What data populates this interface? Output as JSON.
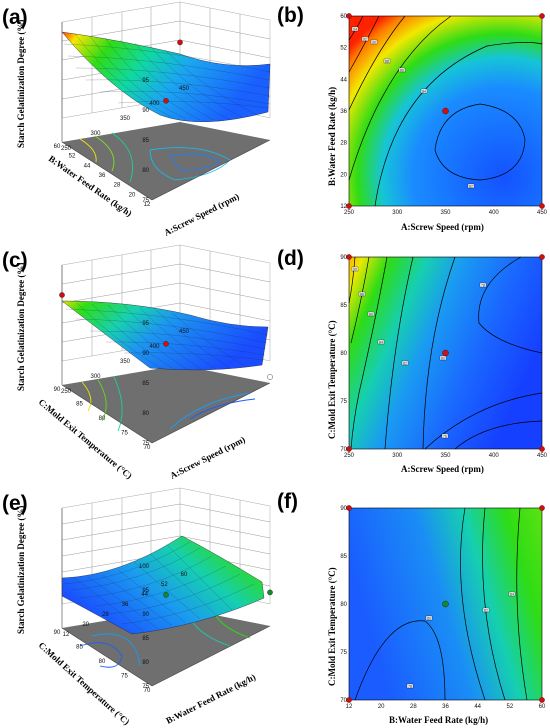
{
  "chart_data": [
    {
      "panel_label": "(a)",
      "type": "surface3d",
      "zlabel": "Starch Gelatinization Degree (%)",
      "xlabel": "A:Screw Speed (rpm)",
      "ylabel": "B:Water Feed Rate (kg/h)",
      "x_ticks": [
        "250",
        "300",
        "350",
        "400",
        "450"
      ],
      "y_ticks": [
        "12",
        "20",
        "28",
        "36",
        "44",
        "52",
        "60"
      ],
      "z_ticks": [
        "75",
        "80",
        "85",
        "90",
        "95"
      ],
      "x_range": [
        250,
        450
      ],
      "y_range": [
        12,
        60
      ],
      "z_range": [
        75,
        95
      ],
      "floor_contours": true,
      "points": [
        {
          "x": 350,
          "y": 36,
          "z": 81.7,
          "color": "#d01010"
        },
        {
          "x": 450,
          "y": 60,
          "z": 81.6,
          "color": "#d01010"
        }
      ],
      "colors": {
        "low": "#0a3cff",
        "high": "#ff2a00"
      }
    },
    {
      "panel_label": "(b)",
      "type": "contour",
      "xlabel": "A:Screw Speed (rpm)",
      "ylabel": "B:Water Feed Rate (kg/h)",
      "x_ticks": [
        "250",
        "300",
        "350",
        "400",
        "450"
      ],
      "y_ticks": [
        "12",
        "20",
        "28",
        "36",
        "44",
        "52",
        "60"
      ],
      "x_range": [
        250,
        450
      ],
      "y_range": [
        12,
        60
      ],
      "contour_labels": [
        "94",
        "92",
        "90",
        "88",
        "86",
        "84",
        "82"
      ],
      "center_point": {
        "x": 350,
        "y": 36,
        "color": "#d01010"
      },
      "corner_points": [
        {
          "x": 250,
          "y": 12
        },
        {
          "x": 450,
          "y": 12
        },
        {
          "x": 450,
          "y": 60
        },
        {
          "x": 250,
          "y": 60
        }
      ]
    },
    {
      "panel_label": "(c)",
      "type": "surface3d",
      "zlabel": "Starch Gelatinization Degree (%)",
      "xlabel": "A:Screw Speed (rpm)",
      "ylabel": "C:Mold Exit Temperature (°C)",
      "x_ticks": [
        "250",
        "300",
        "350",
        "400",
        "450"
      ],
      "y_ticks": [
        "70",
        "75",
        "80",
        "85",
        "90"
      ],
      "z_ticks": [
        "75",
        "80",
        "85",
        "90",
        "95"
      ],
      "x_range": [
        250,
        450
      ],
      "y_range": [
        70,
        90
      ],
      "z_range": [
        75,
        95
      ],
      "floor_contours": true,
      "points": [
        {
          "x": 350,
          "y": 80,
          "z": 81.7,
          "color": "#d01010"
        },
        {
          "x": 250,
          "y": 90,
          "z": 90,
          "color": "#d01010"
        },
        {
          "x": 450,
          "y": 70,
          "z": 76,
          "color": "#ffffff"
        }
      ],
      "colors": {
        "low": "#0a3cff",
        "high": "#ff2a00"
      }
    },
    {
      "panel_label": "(d)",
      "type": "contour",
      "xlabel": "A:Screw Speed (rpm)",
      "ylabel": "C:Mold Exit Temperature (°C)",
      "x_ticks": [
        "250",
        "300",
        "350",
        "400",
        "450"
      ],
      "y_ticks": [
        "70",
        "75",
        "80",
        "85",
        "90"
      ],
      "x_range": [
        250,
        450
      ],
      "y_range": [
        70,
        90
      ],
      "contour_labels": [
        "90",
        "88",
        "86",
        "84",
        "82",
        "80",
        "78",
        "76"
      ],
      "center_point": {
        "x": 350,
        "y": 80,
        "color": "#d01010"
      },
      "corner_points": [
        {
          "x": 250,
          "y": 70
        },
        {
          "x": 450,
          "y": 70
        },
        {
          "x": 450,
          "y": 90
        },
        {
          "x": 250,
          "y": 90
        }
      ]
    },
    {
      "panel_label": "(e)",
      "type": "surface3d",
      "zlabel": "Starch Gelatinization Degree (%)",
      "xlabel": "B:Water Feed Rate (kg/h)",
      "ylabel": "C:Mold Exit Temperature (°C)",
      "x_ticks": [
        "12",
        "20",
        "28",
        "36",
        "44",
        "52",
        "60"
      ],
      "y_ticks": [
        "70",
        "75",
        "80",
        "85",
        "90"
      ],
      "z_ticks": [
        "75",
        "80",
        "85",
        "90",
        "95",
        "100"
      ],
      "x_range": [
        12,
        60
      ],
      "y_range": [
        70,
        90
      ],
      "z_range": [
        75,
        100
      ],
      "floor_contours": true,
      "points": [
        {
          "x": 36,
          "y": 80,
          "z": 81.7,
          "color": "#108a2a"
        },
        {
          "x": 60,
          "y": 70,
          "z": 82,
          "color": "#108a2a"
        }
      ],
      "colors": {
        "low": "#0a3cff",
        "high": "#2ee00a"
      }
    },
    {
      "panel_label": "(f)",
      "type": "contour",
      "xlabel": "B:Water Feed Rate (kg/h)",
      "ylabel": "C:Mold Exit Temperature (°C)",
      "x_ticks": [
        "12",
        "20",
        "28",
        "36",
        "44",
        "52",
        "60"
      ],
      "y_ticks": [
        "70",
        "75",
        "80",
        "85",
        "90"
      ],
      "x_range": [
        12,
        60
      ],
      "y_range": [
        70,
        90
      ],
      "contour_labels": [
        "84",
        "82",
        "80",
        "78"
      ],
      "center_point": {
        "x": 36,
        "y": 80,
        "color": "#108a2a"
      },
      "corner_points": [
        {
          "x": 12,
          "y": 70
        },
        {
          "x": 60,
          "y": 70
        },
        {
          "x": 60,
          "y": 90
        },
        {
          "x": 12,
          "y": 90
        }
      ]
    }
  ]
}
